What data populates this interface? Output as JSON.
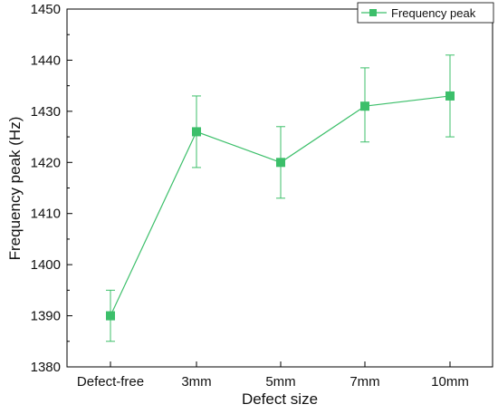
{
  "chart_data": {
    "type": "line",
    "xlabel": "Defect size",
    "ylabel": "Frequency peak (Hz)",
    "categories": [
      "Defect-free",
      "3mm",
      "5mm",
      "7mm",
      "10mm"
    ],
    "ylim": [
      1380,
      1450
    ],
    "yticks": [
      1380,
      1390,
      1400,
      1410,
      1420,
      1430,
      1440,
      1450
    ],
    "grid": false,
    "legend_position": "top-right",
    "series": [
      {
        "name": "Frequency peak",
        "values": [
          1390,
          1426,
          1420,
          1431,
          1433
        ],
        "error_bars": [
          [
            1385,
            1395
          ],
          [
            1419,
            1433
          ],
          [
            1413,
            1427
          ],
          [
            1424,
            1438.5
          ],
          [
            1425,
            1441
          ]
        ],
        "color": "#3cbf6a",
        "marker": "square"
      }
    ]
  }
}
